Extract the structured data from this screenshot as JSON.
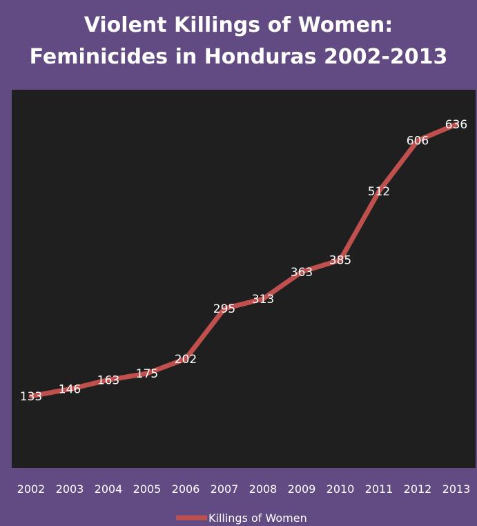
{
  "chart_data": {
    "type": "line",
    "title_lines": [
      "Violent Killings of Women:",
      "Feminicides in Honduras 2002-2013"
    ],
    "categories": [
      "2002",
      "2003",
      "2004",
      "2005",
      "2006",
      "2007",
      "2008",
      "2009",
      "2010",
      "2011",
      "2012",
      "2013"
    ],
    "series": [
      {
        "name": "Killings of Women",
        "values": [
          133,
          146,
          163,
          175,
          202,
          295,
          313,
          363,
          385,
          512,
          606,
          636
        ],
        "color": "#c0504d"
      }
    ],
    "ylim": [
      0,
      700
    ],
    "grid": false,
    "legend_position": "bottom",
    "data_labels": true,
    "colors": {
      "frame": "#614b82",
      "plot_area": "#1f1f1f",
      "text": "#ffffff"
    }
  }
}
